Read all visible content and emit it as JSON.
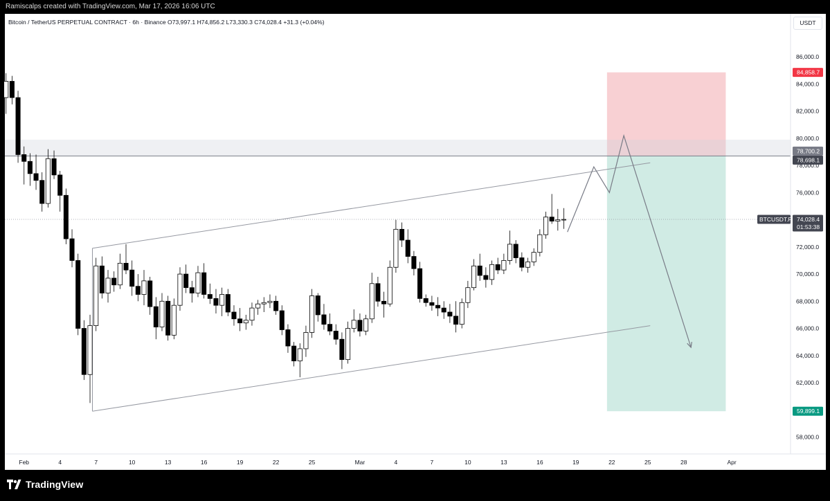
{
  "header": {
    "created_text": "Ramiscalps created with TradingView.com, Mar 17, 2026 16:06 UTC"
  },
  "legend": {
    "symbol": "Bitcoin / TetherUS PERPETUAL CONTRACT · 6h · Binance",
    "open": "O73,997.1",
    "high": "H74,856.2",
    "low": "L73,330.3",
    "close": "C74,028.4",
    "change": "+31.3 (+0.04%)"
  },
  "currency_button": "USDT",
  "footer": {
    "brand": "TradingView"
  },
  "colors": {
    "up_candle": "#ffffff",
    "down_candle": "#000000",
    "stop_zone": "#f7c8cb",
    "target_zone": "#cdeae3",
    "stop_label": "#f23645",
    "target_label": "#089981",
    "zone_label_gray": "#787b86",
    "symbol_label": "#434651"
  },
  "chart_data": {
    "type": "candlestick",
    "timeframe": "6h",
    "y_axis": {
      "ticks": [
        58000,
        60000,
        62000,
        64000,
        66000,
        68000,
        70000,
        72000,
        74000,
        76000,
        78000,
        80000,
        82000,
        84000,
        86000
      ],
      "tick_labels": [
        "58,000.0",
        "60,000.0",
        "62,000.0",
        "64,000.0",
        "66,000.0",
        "68,000.0",
        "70,000.0",
        "72,000.0",
        "74,000.0",
        "76,000.0",
        "78,000.0",
        "80,000.0",
        "82,000.0",
        "84,000.0",
        "86,000.0"
      ],
      "range": [
        56750,
        88150
      ]
    },
    "x_axis": {
      "labels": [
        "Feb",
        "4",
        "7",
        "10",
        "13",
        "16",
        "19",
        "22",
        "25",
        "Mar",
        "4",
        "7",
        "10",
        "13",
        "16",
        "19",
        "22",
        "25",
        "28",
        "Apr"
      ],
      "day_index": [
        0,
        3,
        6,
        9,
        12,
        15,
        18,
        21,
        24,
        28,
        31,
        34,
        37,
        40,
        43,
        46,
        49,
        52,
        55,
        59
      ],
      "range_days": [
        -1.6,
        63.9
      ]
    },
    "candles_daily_approx": [
      {
        "day": -1.5,
        "o": 83000,
        "h": 84800,
        "l": 81800,
        "c": 84200
      },
      {
        "day": -1.0,
        "o": 84200,
        "h": 84600,
        "l": 82500,
        "c": 83000
      },
      {
        "day": -0.5,
        "o": 83000,
        "h": 83500,
        "l": 78200,
        "c": 78800
      },
      {
        "day": 0,
        "o": 78800,
        "h": 79400,
        "l": 76600,
        "c": 78300
      },
      {
        "day": 0.5,
        "o": 78300,
        "h": 78900,
        "l": 76500,
        "c": 77400
      },
      {
        "day": 1,
        "o": 77400,
        "h": 78800,
        "l": 76200,
        "c": 76900
      },
      {
        "day": 1.5,
        "o": 76900,
        "h": 77500,
        "l": 74600,
        "c": 75200
      },
      {
        "day": 2,
        "o": 75200,
        "h": 79200,
        "l": 74900,
        "c": 78500
      },
      {
        "day": 2.5,
        "o": 78500,
        "h": 79100,
        "l": 77000,
        "c": 77300
      },
      {
        "day": 3,
        "o": 77300,
        "h": 77600,
        "l": 74600,
        "c": 75800
      },
      {
        "day": 3.5,
        "o": 75800,
        "h": 76300,
        "l": 72200,
        "c": 72600
      },
      {
        "day": 4,
        "o": 72600,
        "h": 73300,
        "l": 70500,
        "c": 71000
      },
      {
        "day": 4.5,
        "o": 71000,
        "h": 71500,
        "l": 65500,
        "c": 66000
      },
      {
        "day": 5,
        "o": 66000,
        "h": 66600,
        "l": 62200,
        "c": 62600
      },
      {
        "day": 5.5,
        "o": 62600,
        "h": 67000,
        "l": 60500,
        "c": 66200
      },
      {
        "day": 6,
        "o": 66200,
        "h": 71200,
        "l": 65800,
        "c": 70600
      },
      {
        "day": 6.5,
        "o": 70600,
        "h": 71300,
        "l": 68200,
        "c": 68600
      },
      {
        "day": 7,
        "o": 68600,
        "h": 70300,
        "l": 67900,
        "c": 69700
      },
      {
        "day": 7.5,
        "o": 69700,
        "h": 70200,
        "l": 68700,
        "c": 69200
      },
      {
        "day": 8,
        "o": 69200,
        "h": 71500,
        "l": 68900,
        "c": 70800
      },
      {
        "day": 8.5,
        "o": 70800,
        "h": 72200,
        "l": 70000,
        "c": 70300
      },
      {
        "day": 9,
        "o": 70300,
        "h": 71000,
        "l": 68400,
        "c": 69100
      },
      {
        "day": 9.5,
        "o": 69100,
        "h": 70000,
        "l": 68000,
        "c": 68500
      },
      {
        "day": 10,
        "o": 68500,
        "h": 70300,
        "l": 67700,
        "c": 69500
      },
      {
        "day": 10.5,
        "o": 69500,
        "h": 69800,
        "l": 67000,
        "c": 67600
      },
      {
        "day": 11,
        "o": 67600,
        "h": 68300,
        "l": 65200,
        "c": 66100
      },
      {
        "day": 11.5,
        "o": 66100,
        "h": 68600,
        "l": 65800,
        "c": 68000
      },
      {
        "day": 12,
        "o": 68000,
        "h": 68400,
        "l": 65100,
        "c": 65500
      },
      {
        "day": 12.5,
        "o": 65500,
        "h": 68200,
        "l": 65200,
        "c": 67700
      },
      {
        "day": 13,
        "o": 67700,
        "h": 70500,
        "l": 67300,
        "c": 70000
      },
      {
        "day": 13.5,
        "o": 70000,
        "h": 70700,
        "l": 68600,
        "c": 69000
      },
      {
        "day": 14,
        "o": 69000,
        "h": 69500,
        "l": 67900,
        "c": 68600
      },
      {
        "day": 14.5,
        "o": 68600,
        "h": 70600,
        "l": 68300,
        "c": 70100
      },
      {
        "day": 15,
        "o": 70100,
        "h": 70800,
        "l": 68200,
        "c": 68500
      },
      {
        "day": 15.5,
        "o": 68500,
        "h": 69300,
        "l": 67800,
        "c": 68200
      },
      {
        "day": 16,
        "o": 68200,
        "h": 68900,
        "l": 67100,
        "c": 67700
      },
      {
        "day": 16.5,
        "o": 67700,
        "h": 69000,
        "l": 66900,
        "c": 68500
      },
      {
        "day": 17,
        "o": 68500,
        "h": 68900,
        "l": 66900,
        "c": 67200
      },
      {
        "day": 17.5,
        "o": 67200,
        "h": 67700,
        "l": 66200,
        "c": 66700
      },
      {
        "day": 18,
        "o": 66700,
        "h": 67500,
        "l": 65800,
        "c": 66400
      },
      {
        "day": 18.5,
        "o": 66400,
        "h": 67000,
        "l": 65900,
        "c": 66600
      },
      {
        "day": 19,
        "o": 66600,
        "h": 67900,
        "l": 66200,
        "c": 67500
      },
      {
        "day": 19.5,
        "o": 67500,
        "h": 68100,
        "l": 67000,
        "c": 67800
      },
      {
        "day": 20,
        "o": 67800,
        "h": 68300,
        "l": 67200,
        "c": 67900
      },
      {
        "day": 20.5,
        "o": 67900,
        "h": 68500,
        "l": 67500,
        "c": 68000
      },
      {
        "day": 21,
        "o": 68000,
        "h": 68400,
        "l": 67000,
        "c": 67300
      },
      {
        "day": 21.5,
        "o": 67300,
        "h": 67700,
        "l": 65500,
        "c": 65900
      },
      {
        "day": 22,
        "o": 65900,
        "h": 66300,
        "l": 64200,
        "c": 64700
      },
      {
        "day": 22.5,
        "o": 64700,
        "h": 65000,
        "l": 63200,
        "c": 63600
      },
      {
        "day": 23,
        "o": 63600,
        "h": 64900,
        "l": 62400,
        "c": 64500
      },
      {
        "day": 23.5,
        "o": 64500,
        "h": 66200,
        "l": 63900,
        "c": 65700
      },
      {
        "day": 24,
        "o": 65700,
        "h": 68900,
        "l": 65300,
        "c": 68400
      },
      {
        "day": 24.5,
        "o": 68400,
        "h": 68600,
        "l": 66500,
        "c": 67000
      },
      {
        "day": 25,
        "o": 67000,
        "h": 67800,
        "l": 65900,
        "c": 66300
      },
      {
        "day": 25.5,
        "o": 66300,
        "h": 67100,
        "l": 65500,
        "c": 65800
      },
      {
        "day": 26,
        "o": 65800,
        "h": 66300,
        "l": 64800,
        "c": 65200
      },
      {
        "day": 26.5,
        "o": 65200,
        "h": 65700,
        "l": 63000,
        "c": 63700
      },
      {
        "day": 27,
        "o": 63700,
        "h": 66500,
        "l": 63400,
        "c": 66000
      },
      {
        "day": 27.5,
        "o": 66000,
        "h": 67400,
        "l": 65700,
        "c": 66600
      },
      {
        "day": 28,
        "o": 66600,
        "h": 67100,
        "l": 65400,
        "c": 65800
      },
      {
        "day": 28.5,
        "o": 65800,
        "h": 67000,
        "l": 65500,
        "c": 66700
      },
      {
        "day": 29,
        "o": 66700,
        "h": 70100,
        "l": 66400,
        "c": 69300
      },
      {
        "day": 29.5,
        "o": 69300,
        "h": 69800,
        "l": 67600,
        "c": 68000
      },
      {
        "day": 30,
        "o": 68000,
        "h": 68700,
        "l": 66800,
        "c": 67800
      },
      {
        "day": 30.5,
        "o": 67800,
        "h": 71000,
        "l": 67600,
        "c": 70500
      },
      {
        "day": 31,
        "o": 70500,
        "h": 74000,
        "l": 70100,
        "c": 73300
      },
      {
        "day": 31.5,
        "o": 73300,
        "h": 73800,
        "l": 72000,
        "c": 72500
      },
      {
        "day": 32,
        "o": 72500,
        "h": 73300,
        "l": 70800,
        "c": 71300
      },
      {
        "day": 32.5,
        "o": 71300,
        "h": 71700,
        "l": 69900,
        "c": 70400
      },
      {
        "day": 33,
        "o": 70400,
        "h": 70900,
        "l": 67900,
        "c": 68200
      },
      {
        "day": 33.5,
        "o": 68200,
        "h": 68500,
        "l": 67600,
        "c": 67900
      },
      {
        "day": 34,
        "o": 67900,
        "h": 68400,
        "l": 67300,
        "c": 67700
      },
      {
        "day": 34.5,
        "o": 67700,
        "h": 68300,
        "l": 66900,
        "c": 67500
      },
      {
        "day": 35,
        "o": 67500,
        "h": 68000,
        "l": 66700,
        "c": 67200
      },
      {
        "day": 35.5,
        "o": 67200,
        "h": 67800,
        "l": 66400,
        "c": 66900
      },
      {
        "day": 36,
        "o": 66900,
        "h": 68000,
        "l": 65700,
        "c": 66300
      },
      {
        "day": 36.5,
        "o": 66300,
        "h": 68200,
        "l": 66000,
        "c": 67900
      },
      {
        "day": 37,
        "o": 67900,
        "h": 69500,
        "l": 67500,
        "c": 69000
      },
      {
        "day": 37.5,
        "o": 69000,
        "h": 71100,
        "l": 68800,
        "c": 70600
      },
      {
        "day": 38,
        "o": 70600,
        "h": 71500,
        "l": 69500,
        "c": 69900
      },
      {
        "day": 38.5,
        "o": 69900,
        "h": 70500,
        "l": 69000,
        "c": 69600
      },
      {
        "day": 39,
        "o": 69600,
        "h": 71000,
        "l": 69200,
        "c": 70700
      },
      {
        "day": 39.5,
        "o": 70700,
        "h": 71200,
        "l": 70000,
        "c": 70300
      },
      {
        "day": 40,
        "o": 70300,
        "h": 71500,
        "l": 70000,
        "c": 71000
      },
      {
        "day": 40.5,
        "o": 71000,
        "h": 73200,
        "l": 70700,
        "c": 72200
      },
      {
        "day": 41,
        "o": 72200,
        "h": 72500,
        "l": 70800,
        "c": 71200
      },
      {
        "day": 41.5,
        "o": 71200,
        "h": 71600,
        "l": 70200,
        "c": 70500
      },
      {
        "day": 42,
        "o": 70500,
        "h": 71200,
        "l": 70100,
        "c": 70900
      },
      {
        "day": 42.5,
        "o": 70900,
        "h": 71900,
        "l": 70600,
        "c": 71600
      },
      {
        "day": 43,
        "o": 71600,
        "h": 73300,
        "l": 71300,
        "c": 72900
      },
      {
        "day": 43.5,
        "o": 72900,
        "h": 74600,
        "l": 72600,
        "c": 74200
      },
      {
        "day": 44,
        "o": 74200,
        "h": 75900,
        "l": 73700,
        "c": 73900
      },
      {
        "day": 44.5,
        "o": 73900,
        "h": 74800,
        "l": 73200,
        "c": 73997.1
      },
      {
        "day": 45,
        "o": 73997.1,
        "h": 74856.2,
        "l": 73330.3,
        "c": 74028.4
      }
    ],
    "channel": {
      "upper": [
        {
          "day": 5.7,
          "price": 71900
        },
        {
          "day": 52.2,
          "price": 78200
        }
      ],
      "lower": [
        {
          "day": 5.7,
          "price": 59900
        },
        {
          "day": 52.2,
          "price": 66200
        }
      ]
    },
    "projection_path": [
      {
        "day": 45.3,
        "price": 73100
      },
      {
        "day": 47.5,
        "price": 77900
      },
      {
        "day": 48.8,
        "price": 76000
      },
      {
        "day": 50.0,
        "price": 80200
      },
      {
        "day": 55.6,
        "price": 64600
      }
    ],
    "position": {
      "type": "short",
      "entry": 78698.1,
      "stop": 84858.7,
      "target": 59899.1,
      "days": [
        48.6,
        58.5
      ]
    },
    "resistance_zone": {
      "top": 79900,
      "bottom": 78700.2
    },
    "horizontal_line": 78698.1,
    "current_price": 74028.4,
    "price_labels": {
      "stop": "84,858.7",
      "zone_top": "78,700.2",
      "entry": "78,698.1",
      "last_symbol": "BTCUSDT.P",
      "last_price": "74,028.4",
      "countdown": "01:53:38",
      "target": "59,899.1"
    }
  }
}
